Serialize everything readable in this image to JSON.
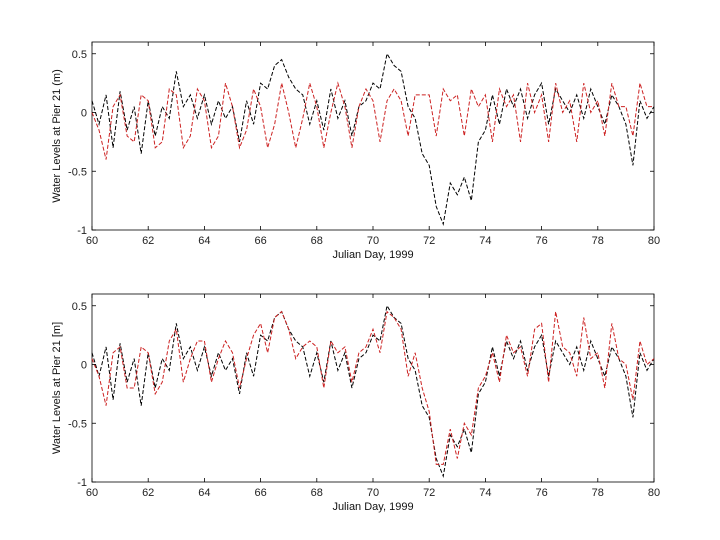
{
  "chart_data": [
    {
      "type": "line",
      "xlabel": "Julian Day, 1999",
      "ylabel": "Water Levels at Pier 21 (m)",
      "xlim": [
        60,
        80
      ],
      "ylim": [
        -1,
        0.6
      ],
      "xticks": [
        60,
        62,
        64,
        66,
        68,
        70,
        72,
        74,
        76,
        78,
        80
      ],
      "xtick_labels": [
        "60",
        "62",
        "64",
        "66",
        "68",
        "70",
        "72",
        "74",
        "76",
        "78",
        "80"
      ],
      "yticks": [
        -1,
        -0.5,
        0,
        0.5
      ],
      "ytick_labels": [
        "-1",
        "-0.5",
        "0",
        "0.5"
      ],
      "grid": false,
      "series": [
        {
          "color": "#000000",
          "dash": "dashed",
          "x": [
            60,
            60.25,
            60.5,
            60.75,
            61,
            61.25,
            61.5,
            61.75,
            62,
            62.25,
            62.5,
            62.75,
            63,
            63.25,
            63.5,
            63.75,
            64,
            64.25,
            64.5,
            64.75,
            65,
            65.25,
            65.5,
            65.75,
            66,
            66.25,
            66.5,
            66.75,
            67,
            67.25,
            67.5,
            67.75,
            68,
            68.25,
            68.5,
            68.75,
            69,
            69.25,
            69.5,
            69.75,
            70,
            70.25,
            70.5,
            70.75,
            71,
            71.25,
            71.5,
            71.75,
            72,
            72.25,
            72.5,
            72.75,
            73,
            73.25,
            73.5,
            73.75,
            74,
            74.25,
            74.5,
            74.75,
            75,
            75.25,
            75.5,
            75.75,
            76,
            76.25,
            76.5,
            76.75,
            77,
            77.25,
            77.5,
            77.75,
            78,
            78.25,
            78.5,
            78.75,
            79,
            79.25,
            79.5,
            79.75,
            80
          ],
          "y": [
            0.1,
            -0.1,
            0.15,
            -0.3,
            0.18,
            -0.15,
            0.05,
            -0.35,
            0.1,
            -0.2,
            0.05,
            -0.05,
            0.35,
            0.05,
            0.15,
            -0.05,
            0.15,
            -0.1,
            0.1,
            -0.05,
            0.05,
            -0.25,
            0.1,
            -0.1,
            0.25,
            0.2,
            0.4,
            0.45,
            0.3,
            0.2,
            0.15,
            -0.1,
            0.1,
            -0.15,
            0.2,
            -0.05,
            0.1,
            -0.2,
            0.05,
            0.1,
            0.25,
            0.2,
            0.5,
            0.4,
            0.35,
            0.05,
            -0.05,
            -0.35,
            -0.45,
            -0.8,
            -0.95,
            -0.6,
            -0.7,
            -0.55,
            -0.75,
            -0.25,
            -0.15,
            0.15,
            -0.1,
            0.2,
            0.05,
            0.2,
            -0.05,
            0.15,
            0.25,
            -0.1,
            0.2,
            0.1,
            0.0,
            0.15,
            -0.05,
            0.2,
            0.05,
            -0.1,
            0.15,
            0.05,
            -0.1,
            -0.45,
            0.1,
            -0.05,
            0.05
          ]
        },
        {
          "color": "#cc2222",
          "dash": "dashed",
          "x": [
            60,
            60.25,
            60.5,
            60.75,
            61,
            61.25,
            61.5,
            61.75,
            62,
            62.25,
            62.5,
            62.75,
            63,
            63.25,
            63.5,
            63.75,
            64,
            64.25,
            64.5,
            64.75,
            65,
            65.25,
            65.5,
            65.75,
            66,
            66.25,
            66.5,
            66.75,
            67,
            67.25,
            67.5,
            67.75,
            68,
            68.25,
            68.5,
            68.75,
            69,
            69.25,
            69.5,
            69.75,
            70,
            70.25,
            70.5,
            70.75,
            71,
            71.25,
            71.5,
            71.75,
            72,
            72.25,
            72.5,
            72.75,
            73,
            73.25,
            73.5,
            73.75,
            74,
            74.25,
            74.5,
            74.75,
            75,
            75.25,
            75.5,
            75.75,
            76,
            76.25,
            76.5,
            76.75,
            77,
            77.25,
            77.5,
            77.75,
            78,
            78.25,
            78.5,
            78.75,
            79,
            79.25,
            79.5,
            79.75,
            80
          ],
          "y": [
            0.0,
            -0.15,
            -0.4,
            0.05,
            0.15,
            -0.2,
            -0.25,
            0.15,
            0.1,
            -0.3,
            -0.25,
            0.2,
            0.15,
            -0.3,
            -0.2,
            0.2,
            0.1,
            -0.3,
            -0.2,
            0.25,
            0.05,
            -0.3,
            -0.15,
            0.2,
            0.05,
            -0.3,
            -0.1,
            0.25,
            0.0,
            -0.3,
            -0.05,
            0.25,
            0.05,
            -0.3,
            0.0,
            0.25,
            0.05,
            -0.3,
            0.05,
            0.2,
            0.1,
            -0.25,
            0.1,
            0.2,
            0.1,
            -0.2,
            0.15,
            0.15,
            0.15,
            -0.2,
            0.2,
            0.1,
            0.15,
            -0.2,
            0.2,
            0.05,
            0.15,
            -0.25,
            0.2,
            0.05,
            0.15,
            -0.25,
            0.25,
            0.0,
            0.15,
            -0.25,
            0.25,
            0.0,
            0.1,
            -0.25,
            0.25,
            0.0,
            0.1,
            -0.2,
            0.25,
            0.05,
            0.05,
            -0.2,
            0.25,
            0.05,
            0.05
          ]
        }
      ]
    },
    {
      "type": "line",
      "xlabel": "Julian Day, 1999",
      "ylabel": "Water Levels at Pier 21 [m]",
      "xlim": [
        60,
        80
      ],
      "ylim": [
        -1,
        0.6
      ],
      "xticks": [
        60,
        62,
        64,
        66,
        68,
        70,
        72,
        74,
        76,
        78,
        80
      ],
      "xtick_labels": [
        "60",
        "62",
        "64",
        "66",
        "68",
        "70",
        "72",
        "74",
        "76",
        "78",
        "80"
      ],
      "yticks": [
        -1,
        -0.5,
        0,
        0.5
      ],
      "ytick_labels": [
        "-1",
        "-0.5",
        "0",
        "0.5"
      ],
      "grid": false,
      "series": [
        {
          "color": "#000000",
          "dash": "dashed",
          "x": [
            60,
            60.25,
            60.5,
            60.75,
            61,
            61.25,
            61.5,
            61.75,
            62,
            62.25,
            62.5,
            62.75,
            63,
            63.25,
            63.5,
            63.75,
            64,
            64.25,
            64.5,
            64.75,
            65,
            65.25,
            65.5,
            65.75,
            66,
            66.25,
            66.5,
            66.75,
            67,
            67.25,
            67.5,
            67.75,
            68,
            68.25,
            68.5,
            68.75,
            69,
            69.25,
            69.5,
            69.75,
            70,
            70.25,
            70.5,
            70.75,
            71,
            71.25,
            71.5,
            71.75,
            72,
            72.25,
            72.5,
            72.75,
            73,
            73.25,
            73.5,
            73.75,
            74,
            74.25,
            74.5,
            74.75,
            75,
            75.25,
            75.5,
            75.75,
            76,
            76.25,
            76.5,
            76.75,
            77,
            77.25,
            77.5,
            77.75,
            78,
            78.25,
            78.5,
            78.75,
            79,
            79.25,
            79.5,
            79.75,
            80
          ],
          "y": [
            0.1,
            -0.1,
            0.15,
            -0.3,
            0.18,
            -0.15,
            0.05,
            -0.35,
            0.1,
            -0.2,
            0.05,
            -0.05,
            0.35,
            0.05,
            0.15,
            -0.05,
            0.15,
            -0.1,
            0.1,
            -0.05,
            0.05,
            -0.25,
            0.1,
            -0.1,
            0.25,
            0.2,
            0.4,
            0.45,
            0.3,
            0.2,
            0.15,
            -0.1,
            0.1,
            -0.15,
            0.2,
            -0.05,
            0.1,
            -0.2,
            0.05,
            0.1,
            0.25,
            0.2,
            0.5,
            0.4,
            0.35,
            0.05,
            -0.05,
            -0.35,
            -0.45,
            -0.8,
            -0.95,
            -0.6,
            -0.7,
            -0.55,
            -0.75,
            -0.25,
            -0.15,
            0.15,
            -0.1,
            0.2,
            0.05,
            0.2,
            -0.05,
            0.15,
            0.25,
            -0.1,
            0.2,
            0.1,
            0.0,
            0.15,
            -0.05,
            0.2,
            0.05,
            -0.1,
            0.15,
            0.05,
            -0.1,
            -0.45,
            0.1,
            -0.05,
            0.05
          ]
        },
        {
          "color": "#cc2222",
          "dash": "dashed",
          "x": [
            60,
            60.25,
            60.5,
            60.75,
            61,
            61.25,
            61.5,
            61.75,
            62,
            62.25,
            62.5,
            62.75,
            63,
            63.25,
            63.5,
            63.75,
            64,
            64.25,
            64.5,
            64.75,
            65,
            65.25,
            65.5,
            65.75,
            66,
            66.25,
            66.5,
            66.75,
            67,
            67.25,
            67.5,
            67.75,
            68,
            68.25,
            68.5,
            68.75,
            69,
            69.25,
            69.5,
            69.75,
            70,
            70.25,
            70.5,
            70.75,
            71,
            71.25,
            71.5,
            71.75,
            72,
            72.25,
            72.5,
            72.75,
            73,
            73.25,
            73.5,
            73.75,
            74,
            74.25,
            74.5,
            74.75,
            75,
            75.25,
            75.5,
            75.75,
            76,
            76.25,
            76.5,
            76.75,
            77,
            77.25,
            77.5,
            77.75,
            78,
            78.25,
            78.5,
            78.75,
            79,
            79.25,
            79.5,
            79.75,
            80
          ],
          "y": [
            0.05,
            -0.1,
            -0.35,
            0.1,
            0.15,
            -0.2,
            -0.2,
            0.15,
            0.1,
            -0.25,
            -0.15,
            0.2,
            0.3,
            -0.15,
            0.05,
            0.2,
            0.2,
            -0.15,
            0.05,
            0.2,
            0.1,
            -0.2,
            0.05,
            0.25,
            0.35,
            0.1,
            0.4,
            0.45,
            0.3,
            0.05,
            0.15,
            0.2,
            0.15,
            -0.2,
            0.2,
            0.1,
            0.15,
            -0.15,
            0.1,
            0.15,
            0.3,
            0.1,
            0.45,
            0.4,
            0.3,
            -0.1,
            0.1,
            -0.2,
            -0.4,
            -0.85,
            -0.85,
            -0.55,
            -0.8,
            -0.5,
            -0.6,
            -0.2,
            -0.1,
            0.1,
            -0.15,
            0.25,
            0.1,
            0.15,
            -0.1,
            0.3,
            0.35,
            -0.15,
            0.45,
            0.15,
            0.1,
            -0.1,
            0.4,
            0.05,
            0.1,
            -0.2,
            0.35,
            0.05,
            0.0,
            -0.3,
            0.2,
            0.0,
            0.05
          ]
        }
      ]
    }
  ]
}
